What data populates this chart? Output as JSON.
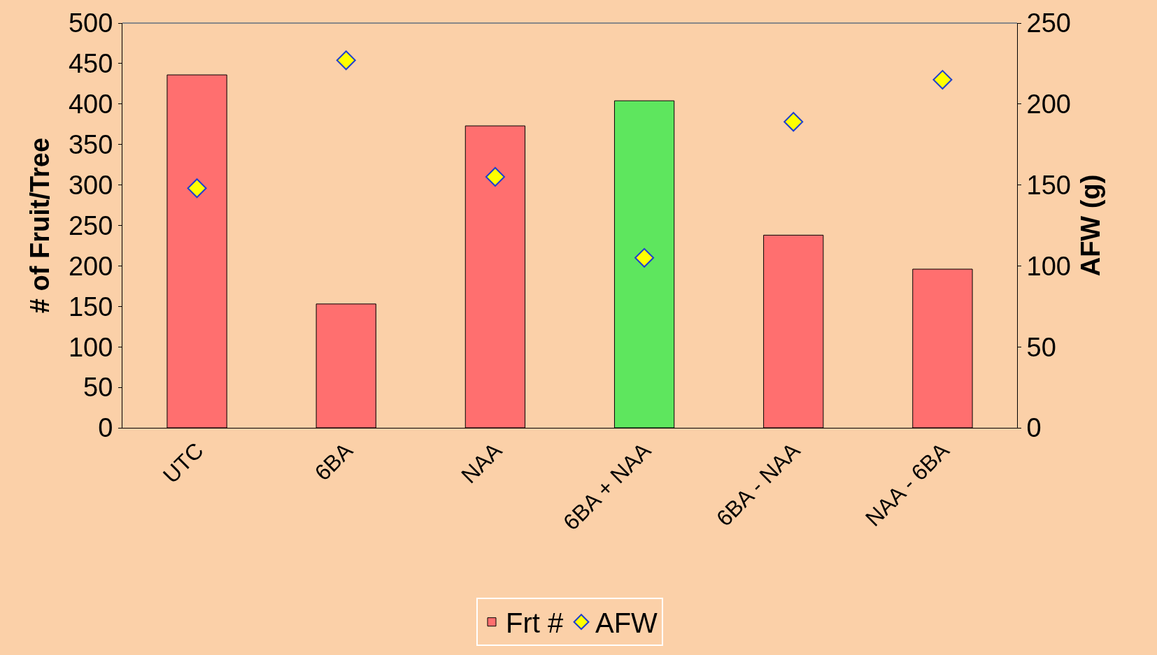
{
  "chart_data": {
    "type": "bar",
    "ylabel": "# of Fruit/Tree",
    "y2label": "AFW (g)",
    "categories": [
      "UTC",
      "6BA",
      "NAA",
      "6BA + NAA",
      "6BA - NAA",
      "NAA - 6BA"
    ],
    "series": [
      {
        "name": "Frt #",
        "color": "#ff6f6f",
        "colors": [
          "#ff6f6f",
          "#ff6f6f",
          "#ff6f6f",
          "#5ee65e",
          "#ff6f6f",
          "#ff6f6f"
        ],
        "values": [
          436,
          153,
          373,
          404,
          238,
          196
        ]
      },
      {
        "name": "AFW",
        "type": "scatter",
        "axis": "y2",
        "color": "#ffff00",
        "marker": "diamond",
        "values": [
          148,
          227,
          155,
          105,
          189,
          215
        ]
      }
    ],
    "ylim": [
      0,
      500
    ],
    "yticks": [
      0,
      50,
      100,
      150,
      200,
      250,
      300,
      350,
      400,
      450,
      500
    ],
    "y2lim": [
      0,
      250
    ],
    "y2ticks": [
      0,
      50,
      100,
      150,
      200,
      250
    ],
    "grid": false,
    "legend": "bottom"
  }
}
